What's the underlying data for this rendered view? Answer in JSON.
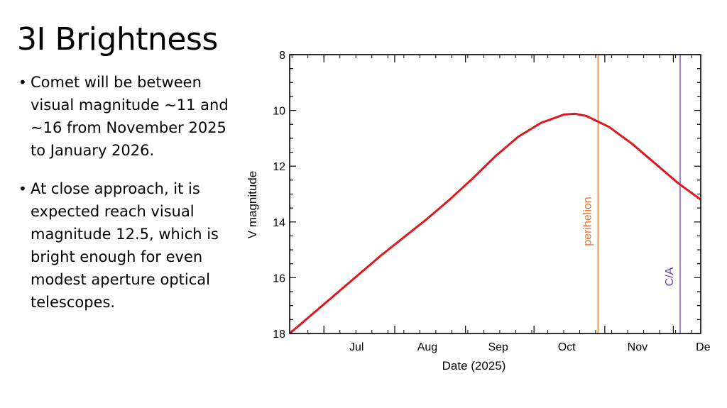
{
  "slide": {
    "title": "3I Brightness",
    "bullets": [
      "Comet will be between visual magnitude ~11 and ~16 from November 2025 to January 2026.",
      "At close approach, it is expected reach visual magnitude 12.5, which is bright enough for even modest aperture optical telescopes."
    ]
  },
  "chart_data": {
    "type": "line",
    "title": "",
    "xlabel": "Date (2025)",
    "ylabel": "V magnitude",
    "x_tick_labels": [
      "Jul",
      "Aug",
      "Sep",
      "Oct",
      "Nov",
      "Dec"
    ],
    "x_ticks": [
      "2025-07-01",
      "2025-08-01",
      "2025-09-01",
      "2025-10-01",
      "2025-11-01",
      "2025-12-01"
    ],
    "xlim": [
      "2025-06-16",
      "2025-12-13"
    ],
    "ylim": [
      8,
      18
    ],
    "y_inverted": true,
    "y_ticks": [
      8,
      10,
      12,
      14,
      16,
      18
    ],
    "grid": false,
    "series": [
      {
        "color": "#e0181d",
        "points": [
          [
            "2025-06-16",
            18.0
          ],
          [
            "2025-06-26",
            17.3
          ],
          [
            "2025-07-06",
            16.6
          ],
          [
            "2025-07-16",
            15.9
          ],
          [
            "2025-07-26",
            15.2
          ],
          [
            "2025-08-05",
            14.55
          ],
          [
            "2025-08-15",
            13.9
          ],
          [
            "2025-08-25",
            13.2
          ],
          [
            "2025-09-04",
            12.45
          ],
          [
            "2025-09-14",
            11.65
          ],
          [
            "2025-09-24",
            10.95
          ],
          [
            "2025-10-04",
            10.45
          ],
          [
            "2025-10-14",
            10.15
          ],
          [
            "2025-10-19",
            10.12
          ],
          [
            "2025-10-24",
            10.2
          ],
          [
            "2025-11-03",
            10.6
          ],
          [
            "2025-11-13",
            11.2
          ],
          [
            "2025-11-23",
            11.9
          ],
          [
            "2025-12-03",
            12.6
          ],
          [
            "2025-12-13",
            13.2
          ]
        ]
      }
    ],
    "annotations": [
      {
        "label": "perihelion",
        "date": "2025-10-29",
        "color": "#e5732d"
      },
      {
        "label": "C/A",
        "date": "2025-12-19",
        "color": "#6a3fb5"
      }
    ],
    "axis_color": "#000000"
  }
}
